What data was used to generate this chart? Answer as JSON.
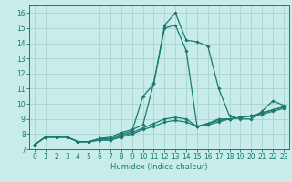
{
  "xlabel": "Humidex (Indice chaleur)",
  "background_color": "#c8ece9",
  "grid_color": "#aad4d0",
  "line_color": "#1a7a6e",
  "xlim": [
    -0.5,
    23.5
  ],
  "ylim": [
    7,
    16.5
  ],
  "xticks": [
    0,
    1,
    2,
    3,
    4,
    5,
    6,
    7,
    8,
    9,
    10,
    11,
    12,
    13,
    14,
    15,
    16,
    17,
    18,
    19,
    20,
    21,
    22,
    23
  ],
  "yticks": [
    7,
    8,
    9,
    10,
    11,
    12,
    13,
    14,
    15,
    16
  ],
  "lines": [
    {
      "x": [
        0,
        1,
        2,
        3,
        4,
        5,
        6,
        7,
        8,
        9,
        10,
        11,
        12,
        13,
        14,
        15,
        16,
        17,
        18,
        19,
        20,
        21,
        22,
        23
      ],
      "y": [
        7.3,
        7.8,
        7.8,
        7.8,
        7.5,
        7.5,
        7.7,
        7.7,
        8.0,
        8.2,
        10.5,
        11.3,
        15.2,
        16.0,
        14.2,
        14.1,
        13.8,
        11.0,
        9.2,
        9.0,
        9.0,
        9.5,
        10.2,
        9.9
      ]
    },
    {
      "x": [
        0,
        1,
        2,
        3,
        4,
        5,
        6,
        7,
        8,
        9,
        10,
        11,
        12,
        13,
        14,
        15,
        16,
        17,
        18,
        19,
        20,
        21,
        22,
        23
      ],
      "y": [
        7.3,
        7.8,
        7.8,
        7.8,
        7.5,
        7.5,
        7.7,
        7.8,
        8.1,
        8.3,
        8.6,
        11.4,
        15.0,
        15.2,
        13.5,
        8.5,
        8.7,
        9.0,
        9.0,
        9.1,
        9.2,
        9.4,
        9.6,
        9.8
      ]
    },
    {
      "x": [
        0,
        1,
        2,
        3,
        4,
        5,
        6,
        7,
        8,
        9,
        10,
        11,
        12,
        13,
        14,
        15,
        16,
        17,
        18,
        19,
        20,
        21,
        22,
        23
      ],
      "y": [
        7.3,
        7.8,
        7.8,
        7.8,
        7.5,
        7.5,
        7.6,
        7.6,
        7.9,
        8.1,
        8.4,
        8.7,
        9.0,
        9.1,
        9.0,
        8.5,
        8.7,
        8.9,
        9.0,
        9.1,
        9.2,
        9.4,
        9.6,
        9.8
      ]
    },
    {
      "x": [
        0,
        1,
        2,
        3,
        4,
        5,
        6,
        7,
        8,
        9,
        10,
        11,
        12,
        13,
        14,
        15,
        16,
        17,
        18,
        19,
        20,
        21,
        22,
        23
      ],
      "y": [
        7.3,
        7.8,
        7.8,
        7.8,
        7.5,
        7.5,
        7.6,
        7.6,
        7.8,
        8.0,
        8.3,
        8.5,
        8.8,
        8.9,
        8.8,
        8.5,
        8.6,
        8.8,
        9.0,
        9.1,
        9.2,
        9.3,
        9.5,
        9.7
      ]
    }
  ],
  "tick_labelsize": 5.5,
  "xlabel_fontsize": 6,
  "linewidth": 0.9,
  "markersize": 1.8
}
